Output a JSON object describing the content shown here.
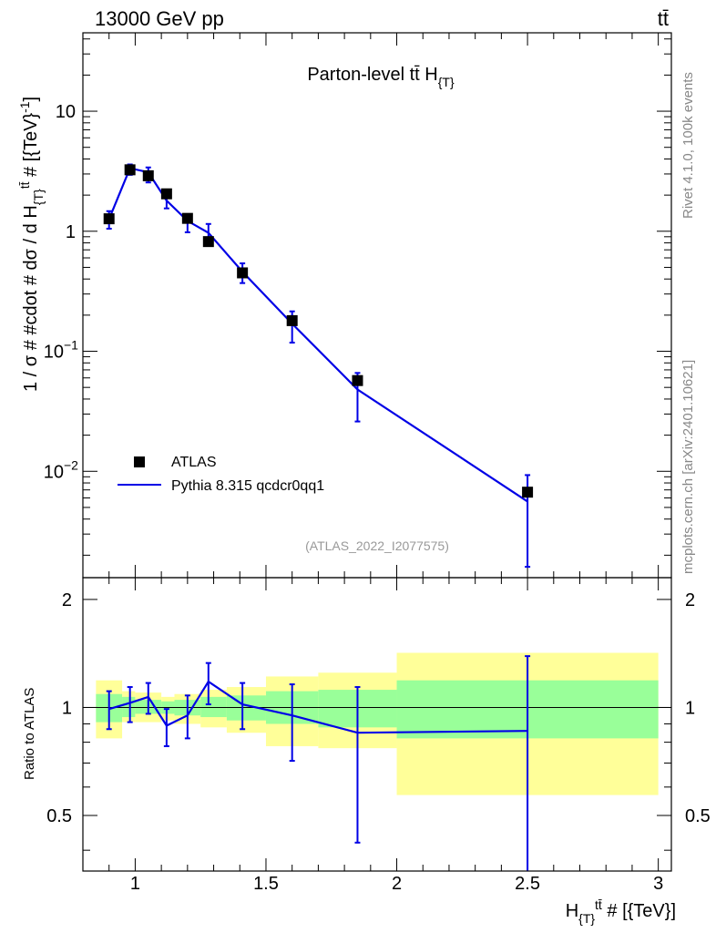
{
  "header": {
    "left": "13000 GeV pp",
    "right": "tt̄"
  },
  "side_labels": {
    "rivet": "Rivet 4.1.0,  100k events",
    "mcplots": "mcplots.cern.ch [arXiv:2401.10621]"
  },
  "colors": {
    "data": "#000000",
    "mc": "#0000e6",
    "band_inner": "#99ff99",
    "band_outer": "#ffff99"
  },
  "chart_data": [
    {
      "type": "scatter",
      "title": "Parton-level tt̄  H_{T}",
      "ylabel": "1 / σ # #cdot # dσ / d H_{T}^{tt̄} # [{TeV}^{-1}]",
      "xlabel": "H_{T}^{tt̄} # [{TeV}]",
      "xlim": [
        0.8,
        3.05
      ],
      "ylim": [
        0.0013,
        45
      ],
      "yscale": "log",
      "y_ticks": [
        {
          "value": 10,
          "label": "10"
        },
        {
          "value": 1,
          "label": "1"
        },
        {
          "value": 0.1,
          "label": "10",
          "exp": "−1"
        },
        {
          "value": 0.01,
          "label": "10",
          "exp": "−2"
        }
      ],
      "analysis_tag": "(ATLAS_2022_I2077575)",
      "legend": {
        "position": "bottom-left",
        "entries": [
          "ATLAS",
          "Pythia 8.315 qcdcr0qq1"
        ]
      },
      "series": [
        {
          "name": "ATLAS",
          "style": "markers",
          "x": [
            0.9,
            0.98,
            1.05,
            1.12,
            1.2,
            1.28,
            1.41,
            1.6,
            1.85,
            2.5
          ],
          "y": [
            1.27,
            3.25,
            2.9,
            2.05,
            1.28,
            0.82,
            0.45,
            0.18,
            0.057,
            0.0067
          ],
          "ylo": [
            1.05,
            2.95,
            2.55,
            1.55,
            0.98,
            0.76,
            0.37,
            0.118,
            0.026,
            0.0016
          ],
          "yhi": [
            1.47,
            3.6,
            3.4,
            2.2,
            1.38,
            1.15,
            0.54,
            0.215,
            0.066,
            0.0093
          ]
        },
        {
          "name": "Pythia 8.315 qcdcr0qq1",
          "style": "line",
          "x": [
            0.9,
            0.98,
            1.05,
            1.12,
            1.2,
            1.28,
            1.41,
            1.6,
            1.85,
            2.5
          ],
          "y": [
            1.26,
            3.35,
            3.1,
            1.8,
            1.22,
            0.97,
            0.46,
            0.17,
            0.048,
            0.0056
          ]
        }
      ]
    },
    {
      "type": "line",
      "ylabel": "Ratio to ATLAS",
      "xlabel": "H_{T}^{tt̄} # [{TeV}]",
      "xlim": [
        0.8,
        3.05
      ],
      "ylim": [
        0.35,
        2.3
      ],
      "yscale": "log",
      "y_ticks": [
        {
          "value": 0.5,
          "label": "0.5"
        },
        {
          "value": 1,
          "label": "1"
        },
        {
          "value": 2,
          "label": "2"
        }
      ],
      "x_ticks": [
        {
          "value": 1,
          "label": "1"
        },
        {
          "value": 1.5,
          "label": "1.5"
        },
        {
          "value": 2,
          "label": "2"
        },
        {
          "value": 2.5,
          "label": "2.5"
        },
        {
          "value": 3,
          "label": "3"
        }
      ],
      "bands": [
        {
          "xlo": 0.85,
          "xhi": 0.95,
          "in_lo": 0.91,
          "in_hi": 1.09,
          "out_lo": 0.82,
          "out_hi": 1.19
        },
        {
          "xlo": 0.95,
          "xhi": 1.0,
          "in_lo": 0.94,
          "in_hi": 1.07,
          "out_lo": 0.91,
          "out_hi": 1.11
        },
        {
          "xlo": 1.0,
          "xhi": 1.1,
          "in_lo": 0.96,
          "in_hi": 1.05,
          "out_lo": 0.91,
          "out_hi": 1.1
        },
        {
          "xlo": 1.1,
          "xhi": 1.15,
          "in_lo": 0.96,
          "in_hi": 1.04,
          "out_lo": 0.92,
          "out_hi": 1.07
        },
        {
          "xlo": 1.15,
          "xhi": 1.25,
          "in_lo": 0.95,
          "in_hi": 1.05,
          "out_lo": 0.9,
          "out_hi": 1.09
        },
        {
          "xlo": 1.25,
          "xhi": 1.35,
          "in_lo": 0.94,
          "in_hi": 1.07,
          "out_lo": 0.88,
          "out_hi": 1.12
        },
        {
          "xlo": 1.35,
          "xhi": 1.5,
          "in_lo": 0.92,
          "in_hi": 1.08,
          "out_lo": 0.85,
          "out_hi": 1.14
        },
        {
          "xlo": 1.5,
          "xhi": 1.7,
          "in_lo": 0.9,
          "in_hi": 1.11,
          "out_lo": 0.78,
          "out_hi": 1.22
        },
        {
          "xlo": 1.7,
          "xhi": 2.0,
          "in_lo": 0.88,
          "in_hi": 1.12,
          "out_lo": 0.77,
          "out_hi": 1.25
        },
        {
          "xlo": 2.0,
          "xhi": 3.0,
          "in_lo": 0.82,
          "in_hi": 1.19,
          "out_lo": 0.57,
          "out_hi": 1.42
        }
      ],
      "series": [
        {
          "name": "Pythia 8.315 qcdcr0qq1 / ATLAS",
          "x": [
            0.9,
            0.98,
            1.05,
            1.12,
            1.2,
            1.28,
            1.41,
            1.6,
            1.85,
            2.5
          ],
          "y": [
            0.99,
            1.03,
            1.07,
            0.89,
            0.95,
            1.18,
            1.02,
            0.95,
            0.85,
            0.86
          ],
          "ylo": [
            0.87,
            0.91,
            0.96,
            0.78,
            0.82,
            1.02,
            0.87,
            0.71,
            0.42,
            0.33
          ],
          "yhi": [
            1.11,
            1.14,
            1.17,
            0.99,
            1.08,
            1.33,
            1.17,
            1.16,
            1.14,
            1.39
          ]
        }
      ]
    }
  ]
}
